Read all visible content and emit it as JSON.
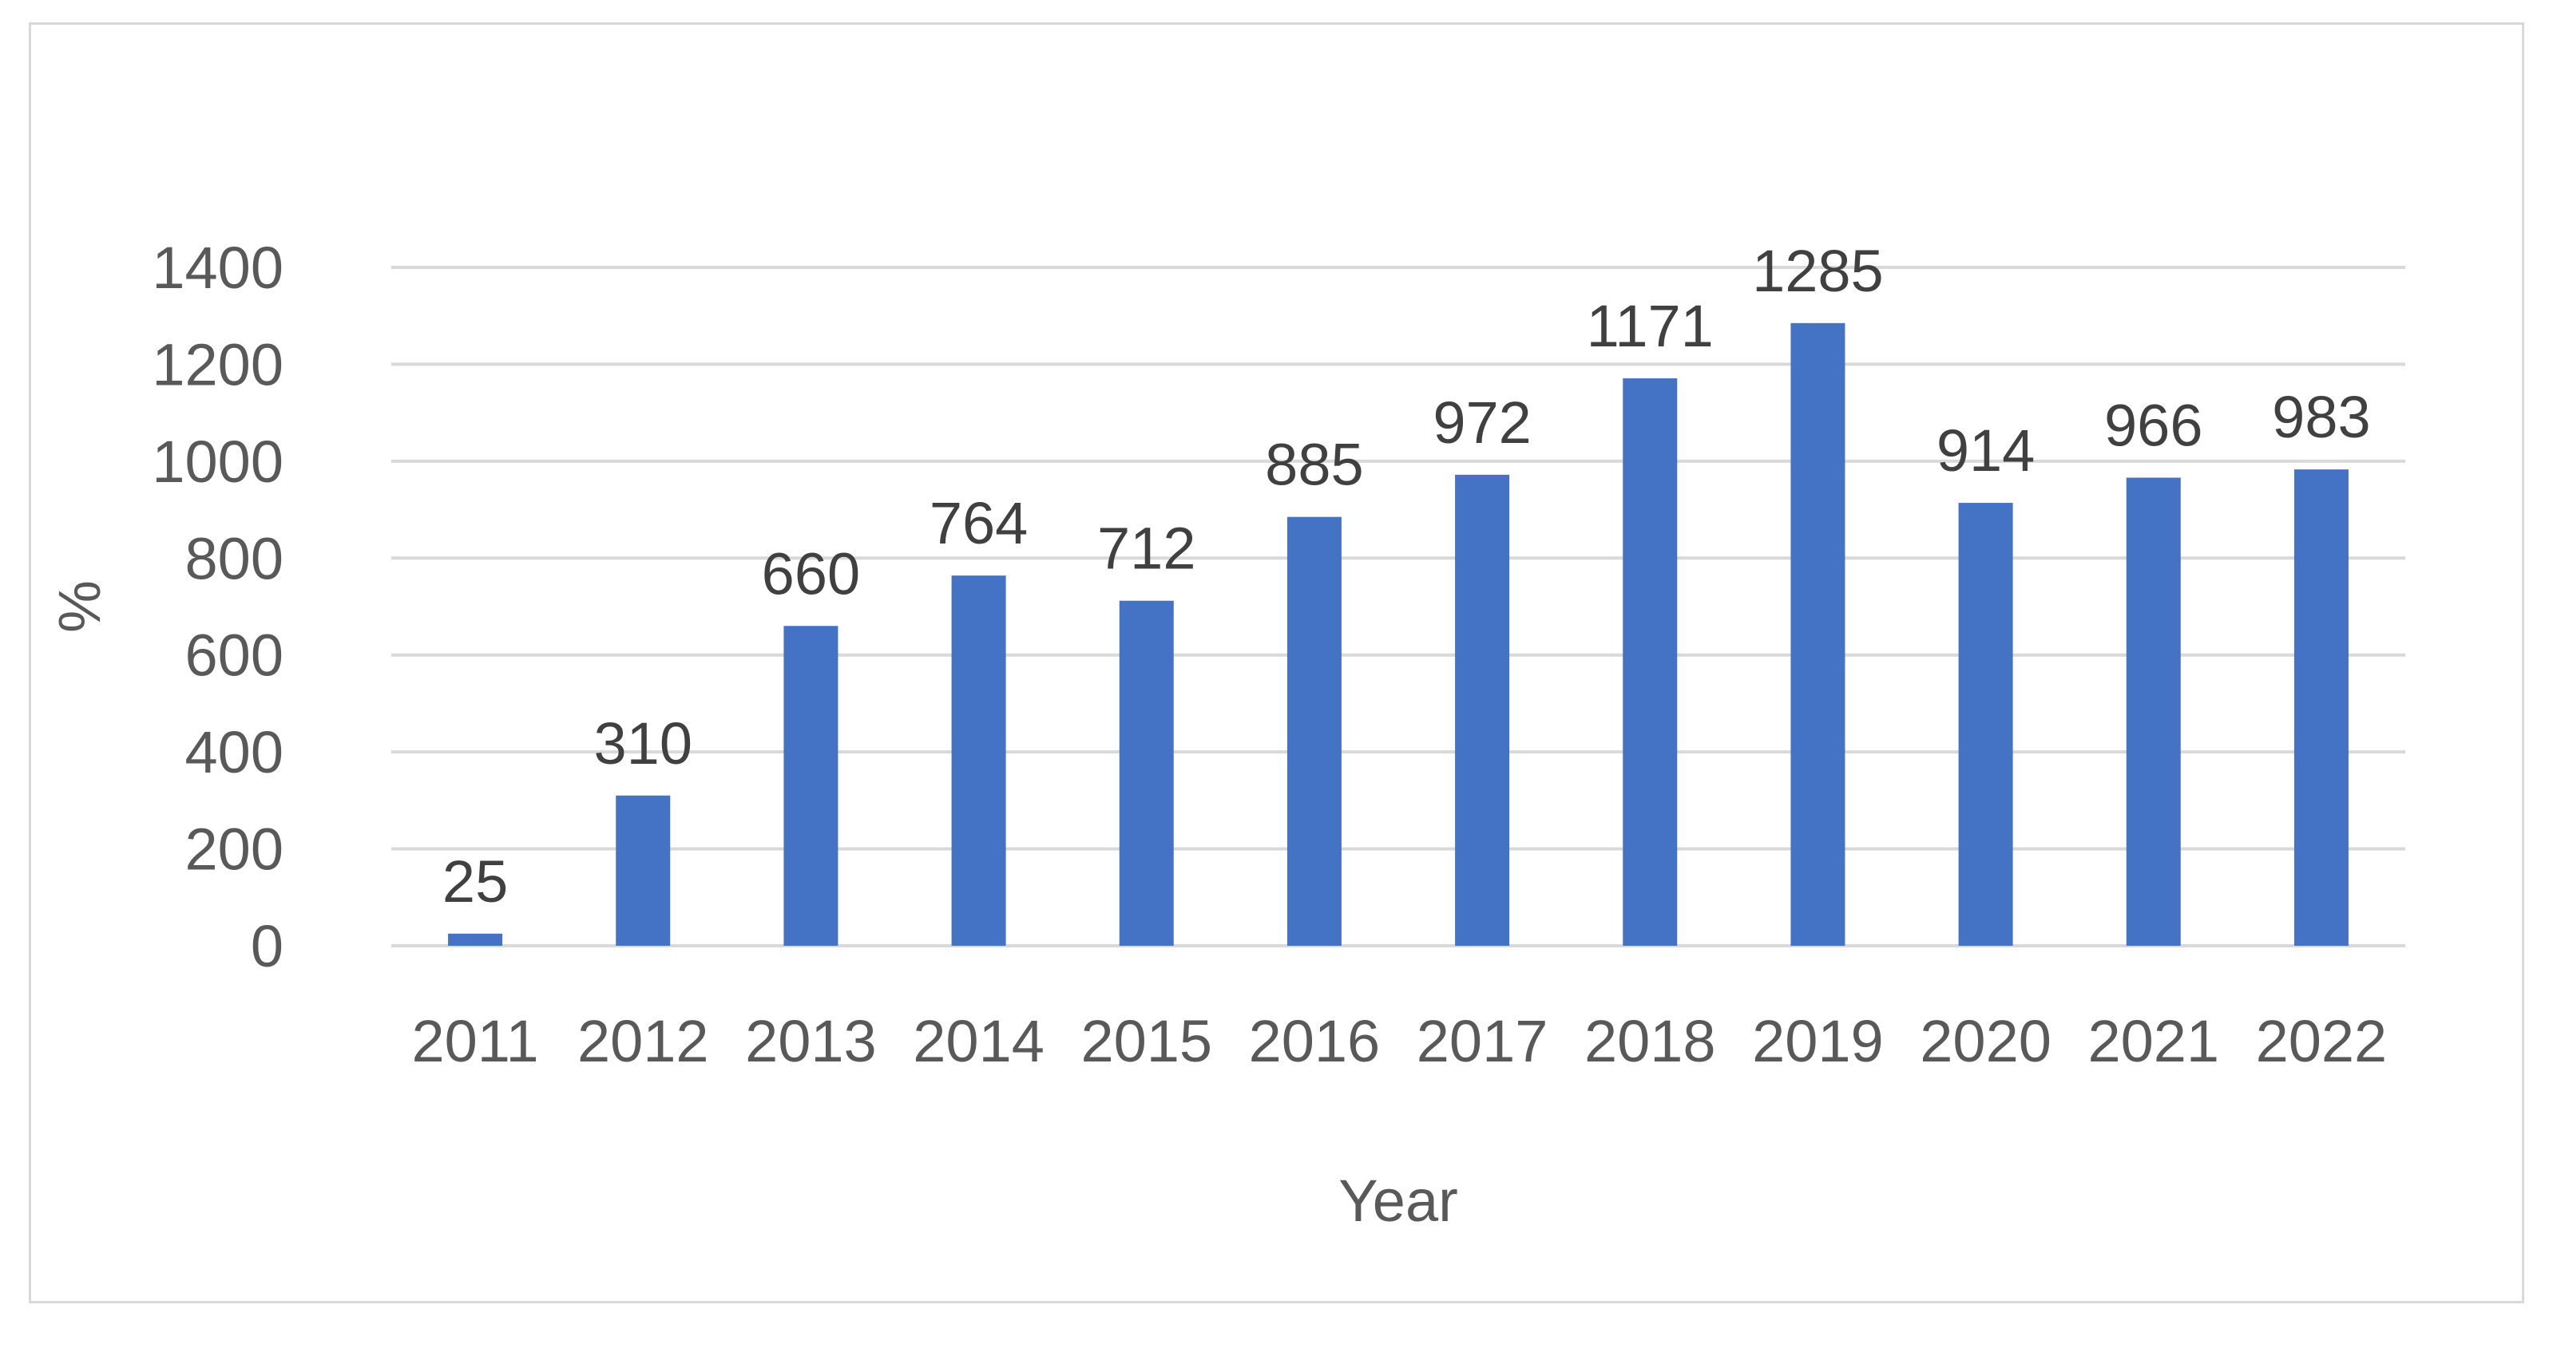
{
  "chart_data": {
    "type": "bar",
    "categories": [
      "2011",
      "2012",
      "2013",
      "2014",
      "2015",
      "2016",
      "2017",
      "2018",
      "2019",
      "2020",
      "2021",
      "2022"
    ],
    "values": [
      25,
      310,
      660,
      764,
      712,
      885,
      972,
      1171,
      1285,
      914,
      966,
      983
    ],
    "data_labels": [
      "25",
      "310",
      "660",
      "764",
      "712",
      "885",
      "972",
      "1171",
      "1285",
      "914",
      "966",
      "983"
    ],
    "title": "",
    "xlabel": "Year",
    "ylabel": "%",
    "ylim": [
      0,
      1400
    ],
    "yticks": [
      "0",
      "200",
      "400",
      "600",
      "800",
      "1000",
      "1200",
      "1400"
    ],
    "grid": "horizontal",
    "legend": "none",
    "bar_color": "#4472c4",
    "grid_color": "#d9d9d9"
  }
}
